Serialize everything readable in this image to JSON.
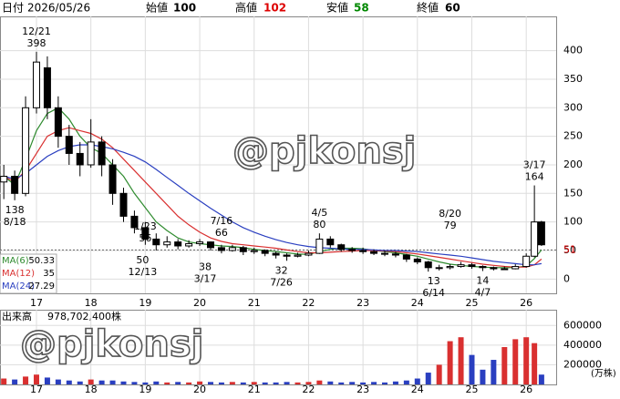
{
  "header": {
    "date_label": "日付",
    "date": "2026/05/26",
    "open_label": "始値",
    "open": 100,
    "high_label": "高値",
    "high": 102,
    "low_label": "安値",
    "low": 58,
    "close_label": "終値",
    "close": 60
  },
  "chart_data": {
    "type": "candlestick",
    "x": [
      16.4,
      16.6,
      16.8,
      17.0,
      17.2,
      17.4,
      17.6,
      17.8,
      18.0,
      18.2,
      18.4,
      18.6,
      18.8,
      19.0,
      19.2,
      19.4,
      19.6,
      19.8,
      20.0,
      20.2,
      20.4,
      20.6,
      20.8,
      21.0,
      21.2,
      21.4,
      21.6,
      21.8,
      22.0,
      22.2,
      22.4,
      22.6,
      22.8,
      23.0,
      23.2,
      23.4,
      23.6,
      23.8,
      24.0,
      24.2,
      24.4,
      24.6,
      24.8,
      25.0,
      25.2,
      25.4,
      25.6,
      25.8,
      26.0,
      26.15,
      26.28
    ],
    "open": [
      170,
      180,
      150,
      300,
      370,
      300,
      250,
      220,
      200,
      240,
      200,
      150,
      110,
      90,
      70,
      60,
      65,
      58,
      62,
      65,
      55,
      50,
      55,
      48,
      50,
      45,
      42,
      40,
      42,
      45,
      70,
      60,
      52,
      50,
      48,
      45,
      44,
      42,
      35,
      30,
      20,
      20,
      22,
      25,
      22,
      20,
      18,
      18,
      22,
      40,
      100
    ],
    "high": [
      200,
      190,
      320,
      398,
      390,
      320,
      270,
      240,
      280,
      250,
      210,
      160,
      120,
      100,
      80,
      75,
      70,
      68,
      70,
      66,
      60,
      60,
      58,
      55,
      52,
      48,
      45,
      46,
      50,
      80,
      75,
      62,
      56,
      55,
      52,
      50,
      48,
      44,
      38,
      32,
      25,
      26,
      30,
      28,
      24,
      22,
      22,
      26,
      45,
      164,
      102
    ],
    "low": [
      140,
      138,
      145,
      290,
      280,
      230,
      200,
      180,
      195,
      180,
      130,
      100,
      80,
      60,
      50,
      55,
      52,
      55,
      58,
      50,
      45,
      48,
      42,
      44,
      40,
      36,
      32,
      38,
      40,
      44,
      55,
      48,
      46,
      44,
      42,
      40,
      38,
      30,
      26,
      13,
      15,
      17,
      20,
      18,
      14,
      15,
      16,
      17,
      20,
      38,
      58
    ],
    "close": [
      180,
      150,
      300,
      380,
      300,
      250,
      220,
      200,
      240,
      200,
      150,
      110,
      90,
      70,
      60,
      65,
      58,
      62,
      65,
      55,
      50,
      55,
      48,
      50,
      45,
      42,
      40,
      42,
      45,
      70,
      60,
      52,
      50,
      48,
      45,
      44,
      42,
      35,
      30,
      20,
      20,
      22,
      25,
      22,
      20,
      18,
      18,
      22,
      40,
      100,
      60
    ],
    "up_color": "#ffffff",
    "down_color": "#000000",
    "moving_averages": [
      {
        "name": "MA(6)",
        "color": "#2e8b2e",
        "last": 50.33,
        "values": [
          180,
          165,
          210,
          260,
          290,
          300,
          280,
          250,
          230,
          220,
          200,
          180,
          150,
          125,
          100,
          85,
          72,
          65,
          62,
          60,
          58,
          57,
          55,
          52,
          50,
          48,
          46,
          44,
          43,
          48,
          52,
          54,
          54,
          53,
          50,
          48,
          46,
          43,
          40,
          35,
          30,
          26,
          24,
          22,
          21,
          20,
          20,
          20,
          23,
          36,
          51
        ]
      },
      {
        "name": "MA(12)",
        "color": "#d93030",
        "last": 35.0,
        "values": [
          180,
          170,
          190,
          220,
          250,
          260,
          265,
          260,
          255,
          245,
          230,
          210,
          190,
          170,
          150,
          130,
          110,
          95,
          82,
          72,
          66,
          62,
          60,
          58,
          56,
          54,
          51,
          48,
          46,
          46,
          47,
          48,
          49,
          50,
          50,
          49,
          48,
          46,
          44,
          41,
          38,
          35,
          32,
          29,
          26,
          24,
          22,
          21,
          21,
          25,
          35
        ]
      },
      {
        "name": "MA(24)",
        "color": "#2a3fc0",
        "last": 27.29,
        "values": [
          180,
          175,
          185,
          200,
          215,
          225,
          232,
          235,
          235,
          232,
          228,
          222,
          215,
          205,
          192,
          178,
          164,
          150,
          137,
          124,
          112,
          100,
          90,
          82,
          75,
          69,
          64,
          60,
          57,
          55,
          54,
          53,
          52,
          52,
          51,
          50,
          50,
          49,
          48,
          46,
          44,
          42,
          40,
          37,
          34,
          31,
          29,
          27,
          25,
          25,
          27
        ]
      }
    ],
    "xlim": [
      16.33,
      26.55
    ],
    "xticks": [
      17,
      18,
      19,
      20,
      21,
      22,
      23,
      24,
      25,
      26
    ],
    "ylim": [
      -25,
      460
    ],
    "yticks": [
      0,
      50,
      100,
      150,
      200,
      250,
      300,
      350,
      400
    ],
    "grid": true,
    "price_line": 51,
    "annotations": [
      {
        "date": "12/21",
        "value": 398,
        "x": 17.0,
        "side": "above"
      },
      {
        "date": "8/18",
        "value": 138,
        "x": 16.6,
        "side": "below"
      },
      {
        "date": "1/23",
        "value": 56,
        "x": 19.0,
        "side": "above"
      },
      {
        "date": "12/13",
        "value": 50,
        "x": 18.95,
        "side": "below"
      },
      {
        "date": "7/16",
        "value": 66,
        "x": 20.4,
        "side": "above"
      },
      {
        "date": "3/17",
        "value": 38,
        "x": 20.1,
        "side": "below"
      },
      {
        "date": "4/5",
        "value": 80,
        "x": 22.2,
        "side": "above"
      },
      {
        "date": "7/26",
        "value": 32,
        "x": 21.5,
        "side": "below"
      },
      {
        "date": "8/20",
        "value": 79,
        "x": 24.6,
        "side": "above"
      },
      {
        "date": "6/14",
        "value": 13,
        "x": 24.3,
        "side": "below"
      },
      {
        "date": "4/7",
        "value": 14,
        "x": 25.2,
        "side": "below"
      },
      {
        "date": "3/17",
        "value": 164,
        "x": 26.15,
        "side": "above"
      }
    ],
    "volume": {
      "title": "出来高",
      "total": "978,702,400株",
      "unit": "(万株)",
      "up_color": "#d93030",
      "down_color": "#2a3fc0",
      "values": [
        60000,
        50000,
        80000,
        100000,
        70000,
        50000,
        40000,
        30000,
        50000,
        40000,
        40000,
        30000,
        25000,
        20000,
        30000,
        20000,
        25000,
        20000,
        30000,
        25000,
        20000,
        25000,
        20000,
        25000,
        20000,
        20000,
        25000,
        20000,
        25000,
        40000,
        30000,
        20000,
        25000,
        20000,
        25000,
        20000,
        30000,
        40000,
        60000,
        120000,
        200000,
        440000,
        480000,
        300000,
        150000,
        250000,
        380000,
        460000,
        480000,
        420000,
        100000
      ],
      "ylim": [
        0,
        760000
      ],
      "yticks": [
        200000,
        400000,
        600000
      ]
    }
  },
  "watermarks": [
    "@pjkonsj",
    "@pjkonsj"
  ]
}
